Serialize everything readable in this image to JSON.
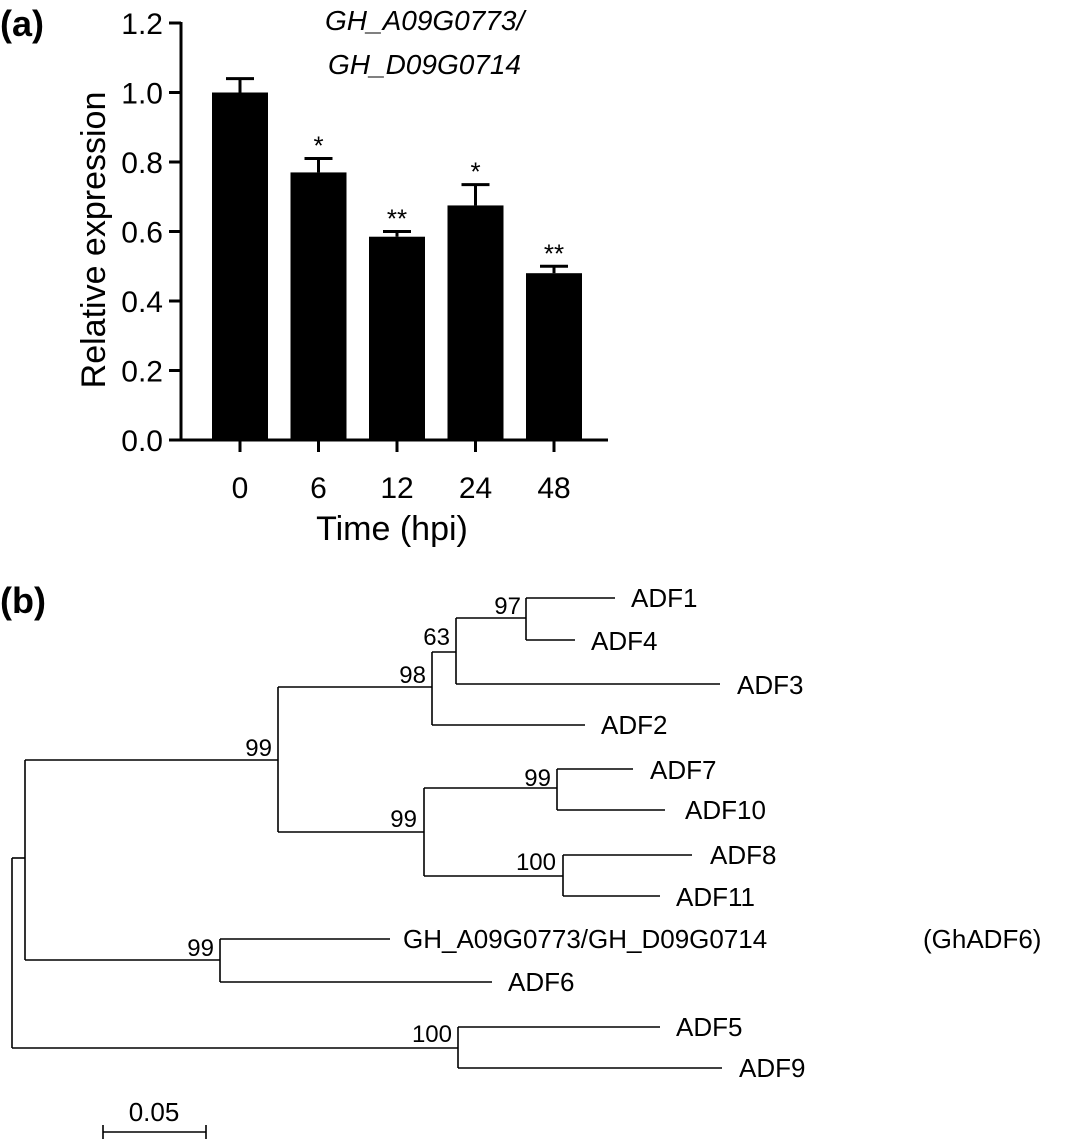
{
  "figure": {
    "panel_a_label": "(a)",
    "panel_b_label": "(b)"
  },
  "chart_data": [
    {
      "type": "bar",
      "title_line1": "GH_A09G0773/",
      "title_line2": "GH_D09G0714",
      "xlabel": "Time (hpi)",
      "ylabel": "Relative expression",
      "categories": [
        "0",
        "6",
        "12",
        "24",
        "48"
      ],
      "values": [
        1.0,
        0.77,
        0.585,
        0.675,
        0.48
      ],
      "errors": [
        0.04,
        0.04,
        0.015,
        0.06,
        0.02
      ],
      "significance": [
        "",
        "*",
        "**",
        "*",
        "**"
      ],
      "ylim": [
        0,
        1.2
      ],
      "yticks": [
        "0.0",
        "0.2",
        "0.4",
        "0.6",
        "0.8",
        "1.0",
        "1.2"
      ],
      "bar_color": "#000000",
      "grid": false
    },
    {
      "type": "phylogenetic_tree",
      "leaves": [
        "ADF1",
        "ADF4",
        "ADF3",
        "ADF2",
        "ADF7",
        "ADF10",
        "ADF8",
        "ADF11",
        "GH_A09G0773/GH_D09G0714",
        "(GhADF6)",
        "ADF6",
        "ADF5",
        "ADF9"
      ],
      "bootstrap": [
        "97",
        "63",
        "98",
        "99",
        "99",
        "99",
        "100",
        "99",
        "100"
      ],
      "scale_label": "0.05"
    }
  ]
}
